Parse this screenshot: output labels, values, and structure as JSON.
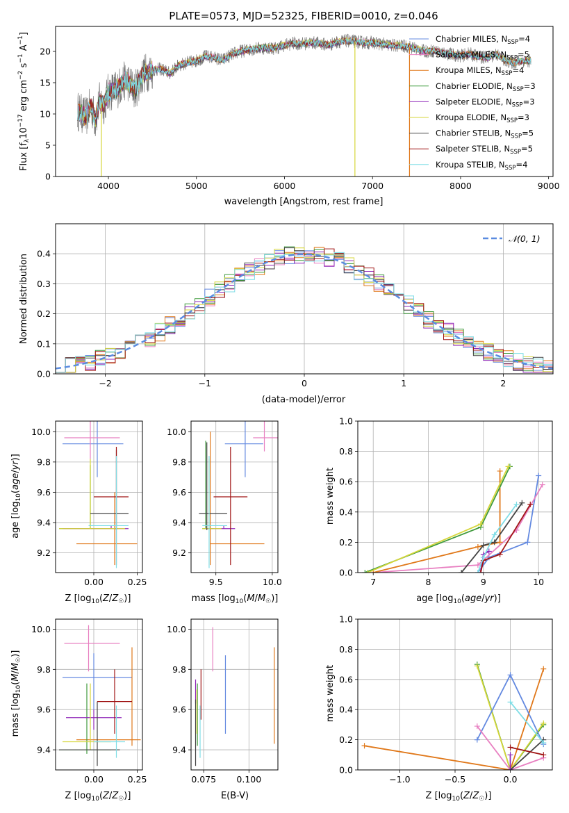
{
  "title": "PLATE=0573, MJD=52325, FIBERID=0010, z=0.046",
  "colors": {
    "chabrier_miles": "#6389e0",
    "salpeter_miles": "#e87fc1",
    "kroupa_miles": "#e0781a",
    "chabrier_elodie": "#3f9a3c",
    "salpeter_elodie": "#8f27b8",
    "kroupa_elodie": "#d6d63a",
    "chabrier_stelib": "#444444",
    "salpeter_stelib": "#a01515",
    "kroupa_stelib": "#7fdde6"
  },
  "chart_data": [
    {
      "id": "spectrum",
      "type": "line",
      "xlabel": "wavelength [Angstrom, rest frame]",
      "ylabel": "Flux [fλ10⁻¹⁷ erg cm⁻² s⁻¹ A⁻¹]",
      "xlim": [
        3400,
        9050
      ],
      "ylim": [
        0,
        24
      ],
      "xticks": [
        "4000",
        "5000",
        "6000",
        "7000",
        "8000",
        "9000"
      ],
      "yticks": [
        "0",
        "5",
        "10",
        "15",
        "20"
      ],
      "legend_position": "right",
      "continuum": {
        "x": [
          3650,
          3700,
          3750,
          3800,
          3850,
          3900,
          3950,
          4000,
          4100,
          4200,
          4300,
          4400,
          4500,
          4600,
          4700,
          4800,
          4900,
          5000,
          5100,
          5200,
          5300,
          5400,
          5500,
          5600,
          5700,
          5800,
          5900,
          6000,
          6100,
          6200,
          6300,
          6400,
          6500,
          6600,
          6700,
          6800,
          6900,
          7000,
          7100,
          7200,
          7300,
          7400,
          7500,
          7600,
          7700,
          7800,
          7900,
          8000,
          8100,
          8200,
          8300,
          8400,
          8500,
          8600,
          8700,
          8800
        ],
        "y": [
          10.5,
          10.0,
          9.5,
          11.5,
          9.0,
          12.0,
          11.5,
          13.5,
          14.0,
          15.5,
          13.8,
          16.5,
          17.0,
          17.2,
          16.5,
          17.8,
          18.2,
          18.5,
          19.2,
          19.0,
          18.6,
          19.5,
          20.0,
          20.3,
          20.5,
          20.6,
          20.5,
          21.0,
          21.3,
          21.2,
          21.4,
          21.3,
          21.0,
          21.5,
          21.7,
          21.6,
          21.4,
          21.4,
          21.2,
          21.0,
          20.9,
          20.8,
          20.4,
          20.0,
          20.1,
          19.8,
          19.5,
          19.3,
          19.6,
          19.2,
          19.0,
          19.6,
          18.6,
          18.2,
          18.5,
          18.5
        ]
      },
      "series": [
        {
          "name": "Chabrier MILES, N_SSP=4",
          "label": "Chabrier MILES, N",
          "sub": "SSP",
          "suffix": "=4",
          "color_key": "chabrier_miles"
        },
        {
          "name": "Salpeter MILES, N_SSP=5",
          "label": "Salpeter MILES, N",
          "sub": "SSP",
          "suffix": "=5",
          "color_key": "salpeter_miles"
        },
        {
          "name": "Kroupa MILES, N_SSP=4",
          "label": "Kroupa MILES, N",
          "sub": "SSP",
          "suffix": "=4",
          "color_key": "kroupa_miles"
        },
        {
          "name": "Chabrier ELODIE, N_SSP=3",
          "label": "Chabrier ELODIE, N",
          "sub": "SSP",
          "suffix": "=3",
          "color_key": "chabrier_elodie"
        },
        {
          "name": "Salpeter ELODIE, N_SSP=3",
          "label": "Salpeter ELODIE, N",
          "sub": "SSP",
          "suffix": "=3",
          "color_key": "salpeter_elodie"
        },
        {
          "name": "Kroupa ELODIE, N_SSP=3",
          "label": "Kroupa ELODIE, N",
          "sub": "SSP",
          "suffix": "=3",
          "color_key": "kroupa_elodie"
        },
        {
          "name": "Chabrier STELIB, N_SSP=5",
          "label": "Chabrier STELIB, N",
          "sub": "SSP",
          "suffix": "=5",
          "color_key": "chabrier_stelib"
        },
        {
          "name": "Salpeter STELIB, N_SSP=5",
          "label": "Salpeter STELIB, N",
          "sub": "SSP",
          "suffix": "=5",
          "color_key": "salpeter_stelib"
        },
        {
          "name": "Kroupa STELIB, N_SSP=4",
          "label": "Kroupa STELIB, N",
          "sub": "SSP",
          "suffix": "=4",
          "color_key": "kroupa_stelib"
        }
      ]
    },
    {
      "id": "residuals",
      "type": "area",
      "xlabel": "(data-model)/error",
      "ylabel": "Normed distribution",
      "xlim": [
        -2.5,
        2.5
      ],
      "ylim": [
        0,
        0.5
      ],
      "xticks": [
        "−2",
        "−1",
        "0",
        "1",
        "2"
      ],
      "yticks": [
        "0.0",
        "0.1",
        "0.2",
        "0.3",
        "0.4"
      ],
      "grid": true,
      "legend_position": "top-right",
      "legend_label": "𝒩(0, 1)",
      "bin_width": 0.1,
      "bin_start": -2.5,
      "bins": 50
    },
    {
      "id": "age_vs_Z",
      "type": "scatter",
      "xlabel": "Z [log10(Z/Z⊙)]",
      "ylabel": "age [log10(age/yr)]",
      "xlim": [
        -0.22,
        0.28
      ],
      "ylim": [
        9.07,
        10.07
      ],
      "xticks": [
        "0.00",
        "0.25"
      ],
      "yticks": [
        "9.2",
        "9.4",
        "9.6",
        "9.8",
        "10.0"
      ],
      "grid": true,
      "points": [
        {
          "k": "chabrier_miles",
          "x": 0.02,
          "y": 9.92,
          "ex": [
            -0.18,
            0.17
          ],
          "ey": [
            9.7,
            10.08
          ]
        },
        {
          "k": "salpeter_miles",
          "x": -0.02,
          "y": 9.96,
          "ex": [
            -0.17,
            0.15
          ],
          "ey": [
            9.82,
            10.1
          ]
        },
        {
          "k": "kroupa_miles",
          "x": 0.12,
          "y": 9.26,
          "ex": [
            -0.1,
            0.25
          ],
          "ey": [
            9.12,
            9.6
          ]
        },
        {
          "k": "chabrier_elodie",
          "x": -0.02,
          "y": 9.36,
          "ex": [
            -0.2,
            0.1
          ],
          "ey": [
            9.36,
            9.78
          ]
        },
        {
          "k": "salpeter_elodie",
          "x": 0.1,
          "y": 9.36,
          "ex": [
            -0.18,
            0.2
          ],
          "ey": [
            9.36,
            9.38
          ]
        },
        {
          "k": "kroupa_elodie",
          "x": -0.02,
          "y": 9.36,
          "ex": [
            -0.2,
            0.18
          ],
          "ey": [
            9.36,
            9.82
          ]
        },
        {
          "k": "chabrier_stelib",
          "x": 0.13,
          "y": 9.46,
          "ex": [
            -0.02,
            0.2
          ],
          "ey": [
            9.35,
            9.88
          ]
        },
        {
          "k": "salpeter_stelib",
          "x": 0.13,
          "y": 9.57,
          "ex": [
            0.0,
            0.2
          ],
          "ey": [
            9.12,
            9.9
          ]
        },
        {
          "k": "kroupa_stelib",
          "x": 0.13,
          "y": 9.38,
          "ex": [
            -0.03,
            0.2
          ],
          "ey": [
            9.1,
            9.84
          ]
        }
      ]
    },
    {
      "id": "age_vs_mass",
      "type": "scatter",
      "xlabel": "mass [log10(M/M⊙)]",
      "ylabel": "",
      "xlim": [
        9.28,
        10.05
      ],
      "ylim": [
        9.07,
        10.07
      ],
      "xticks": [
        "9.5",
        "10.0"
      ],
      "yticks": [
        "9.2",
        "9.4",
        "9.6",
        "9.8",
        "10.0"
      ],
      "grid": true,
      "points": [
        {
          "k": "chabrier_miles",
          "x": 9.76,
          "y": 9.92,
          "ex": [
            9.58,
            9.92
          ],
          "ey": [
            9.7,
            10.08
          ]
        },
        {
          "k": "salpeter_miles",
          "x": 9.93,
          "y": 9.96,
          "ex": [
            9.83,
            10.05
          ],
          "ey": [
            9.87,
            10.1
          ]
        },
        {
          "k": "kroupa_miles",
          "x": 9.45,
          "y": 9.26,
          "ex": [
            9.45,
            9.93
          ],
          "ey": [
            9.12,
            10.0
          ]
        },
        {
          "k": "chabrier_elodie",
          "x": 9.41,
          "y": 9.36,
          "ex": [
            9.38,
            9.48
          ],
          "ey": [
            9.36,
            9.94
          ]
        },
        {
          "k": "salpeter_elodie",
          "x": 9.57,
          "y": 9.36,
          "ex": [
            9.4,
            9.67
          ],
          "ey": [
            9.36,
            9.38
          ]
        },
        {
          "k": "kroupa_elodie",
          "x": 9.44,
          "y": 9.36,
          "ex": [
            9.38,
            9.55
          ],
          "ey": [
            9.36,
            9.82
          ]
        },
        {
          "k": "chabrier_stelib",
          "x": 9.42,
          "y": 9.46,
          "ex": [
            9.35,
            9.6
          ],
          "ey": [
            9.35,
            9.93
          ]
        },
        {
          "k": "salpeter_stelib",
          "x": 9.63,
          "y": 9.57,
          "ex": [
            9.48,
            9.78
          ],
          "ey": [
            9.12,
            9.9
          ]
        },
        {
          "k": "kroupa_stelib",
          "x": 9.44,
          "y": 9.38,
          "ex": [
            9.38,
            9.6
          ],
          "ey": [
            9.1,
            9.84
          ]
        }
      ]
    },
    {
      "id": "weight_vs_age",
      "type": "line",
      "xlabel": "age [log10(age/yr)]",
      "ylabel": "mass weight",
      "xlim": [
        6.72,
        10.25
      ],
      "ylim": [
        0,
        1
      ],
      "xticks": [
        "7",
        "8",
        "9",
        "10"
      ],
      "yticks": [
        "0.0",
        "0.2",
        "0.4",
        "0.6",
        "0.8",
        "1.0"
      ],
      "grid": true,
      "series": [
        {
          "k": "chabrier_miles",
          "x": [
            8.9,
            9.1,
            9.8,
            10.0
          ],
          "y": [
            0.0,
            0.1,
            0.2,
            0.64
          ]
        },
        {
          "k": "salpeter_miles",
          "x": [
            7.0,
            8.9,
            9.6,
            10.07
          ],
          "y": [
            0.0,
            0.05,
            0.28,
            0.58
          ]
        },
        {
          "k": "kroupa_miles",
          "x": [
            7.0,
            8.9,
            9.3,
            9.3
          ],
          "y": [
            0.0,
            0.17,
            0.2,
            0.67
          ]
        },
        {
          "k": "chabrier_elodie",
          "x": [
            6.85,
            8.95,
            9.48
          ],
          "y": [
            0.0,
            0.3,
            0.7
          ]
        },
        {
          "k": "salpeter_elodie",
          "x": [
            8.95,
            9.0,
            9.1
          ],
          "y": [
            0.0,
            0.12,
            0.14
          ]
        },
        {
          "k": "kroupa_elodie",
          "x": [
            6.9,
            8.95,
            9.45
          ],
          "y": [
            0.0,
            0.32,
            0.7
          ]
        },
        {
          "k": "chabrier_stelib",
          "x": [
            8.6,
            9.0,
            9.2,
            9.7
          ],
          "y": [
            0.0,
            0.18,
            0.2,
            0.46
          ]
        },
        {
          "k": "salpeter_stelib",
          "x": [
            8.95,
            9.0,
            9.3,
            9.85
          ],
          "y": [
            0.0,
            0.08,
            0.12,
            0.45
          ]
        },
        {
          "k": "kroupa_stelib",
          "x": [
            8.9,
            9.0,
            9.2,
            9.6
          ],
          "y": [
            0.0,
            0.1,
            0.25,
            0.45
          ]
        }
      ]
    },
    {
      "id": "mass_vs_Z",
      "type": "scatter",
      "xlabel": "Z [log10(Z/Z⊙)]",
      "ylabel": "mass [log10(M/M⊙)]",
      "xlim": [
        -0.22,
        0.28
      ],
      "ylim": [
        9.3,
        10.05
      ],
      "xticks": [
        "0.00",
        "0.25"
      ],
      "yticks": [
        "9.4",
        "9.6",
        "9.8",
        "10.0"
      ],
      "grid": true,
      "points": [
        {
          "k": "chabrier_miles",
          "x": 0.0,
          "y": 9.76,
          "ex": [
            -0.18,
            0.22
          ],
          "ey": [
            9.6,
            9.88
          ]
        },
        {
          "k": "salpeter_miles",
          "x": -0.03,
          "y": 9.93,
          "ex": [
            -0.17,
            0.15
          ],
          "ey": [
            9.79,
            10.02
          ]
        },
        {
          "k": "kroupa_miles",
          "x": 0.22,
          "y": 9.45,
          "ex": [
            -0.1,
            0.27
          ],
          "ey": [
            9.42,
            9.91
          ]
        },
        {
          "k": "chabrier_elodie",
          "x": -0.04,
          "y": 9.4,
          "ex": [
            -0.2,
            0.1
          ],
          "ey": [
            9.38,
            9.73
          ]
        },
        {
          "k": "salpeter_elodie",
          "x": 0.0,
          "y": 9.56,
          "ex": [
            -0.16,
            0.16
          ],
          "ey": [
            9.5,
            9.6
          ]
        },
        {
          "k": "kroupa_elodie",
          "x": -0.02,
          "y": 9.44,
          "ex": [
            -0.18,
            0.1
          ],
          "ey": [
            9.4,
            9.73
          ]
        },
        {
          "k": "chabrier_stelib",
          "x": 0.02,
          "y": 9.4,
          "ex": [
            -0.2,
            0.15
          ],
          "ey": [
            9.32,
            9.64
          ]
        },
        {
          "k": "salpeter_stelib",
          "x": 0.12,
          "y": 9.64,
          "ex": [
            0.02,
            0.22
          ],
          "ey": [
            9.48,
            9.8
          ]
        },
        {
          "k": "kroupa_stelib",
          "x": 0.13,
          "y": 9.44,
          "ex": [
            0.0,
            0.18
          ],
          "ey": [
            9.36,
            9.62
          ]
        }
      ]
    },
    {
      "id": "mass_vs_ebv",
      "type": "scatter",
      "xlabel": "E(B-V)",
      "ylabel": "",
      "xlim": [
        0.068,
        0.116
      ],
      "ylim": [
        9.3,
        10.05
      ],
      "xticks": [
        "0.075",
        "0.100"
      ],
      "yticks": [
        "9.4",
        "9.6",
        "9.8",
        "10.0"
      ],
      "grid": true,
      "points": [
        {
          "k": "chabrier_miles",
          "x": 0.087,
          "ey": [
            9.48,
            9.87
          ]
        },
        {
          "k": "salpeter_miles",
          "x": 0.08,
          "ey": [
            9.79,
            10.01
          ]
        },
        {
          "k": "kroupa_miles",
          "x": 0.114,
          "ey": [
            9.43,
            9.91
          ]
        },
        {
          "k": "chabrier_elodie",
          "x": 0.0715,
          "ey": [
            9.42,
            9.73
          ]
        },
        {
          "k": "salpeter_elodie",
          "x": 0.0705,
          "ey": [
            9.63,
            9.75
          ]
        },
        {
          "k": "kroupa_elodie",
          "x": 0.0712,
          "ey": [
            9.48,
            9.7
          ]
        },
        {
          "k": "chabrier_stelib",
          "x": 0.0705,
          "ey": [
            9.32,
            9.65
          ]
        },
        {
          "k": "salpeter_stelib",
          "x": 0.0735,
          "ey": [
            9.55,
            9.8
          ]
        },
        {
          "k": "kroupa_stelib",
          "x": 0.073,
          "ey": [
            9.36,
            9.62
          ]
        }
      ]
    },
    {
      "id": "weight_vs_Z",
      "type": "line",
      "xlabel": "Z [log10(Z/Z⊙)]",
      "ylabel": "mass weight",
      "xlim": [
        -1.38,
        0.38
      ],
      "ylim": [
        0,
        1
      ],
      "xticks": [
        "−1.0",
        "−0.5",
        "0.0"
      ],
      "yticks": [
        "0.0",
        "0.2",
        "0.4",
        "0.6",
        "0.8",
        "1.0"
      ],
      "grid": true,
      "series": [
        {
          "k": "kroupa_miles",
          "x": [
            -1.32,
            0.0,
            0.3
          ],
          "y": [
            0.16,
            0.0,
            0.67
          ]
        },
        {
          "k": "chabrier_elodie",
          "x": [
            -0.3,
            0.0,
            0.3
          ],
          "y": [
            0.7,
            0.0,
            0.3
          ]
        },
        {
          "k": "kroupa_elodie",
          "x": [
            -0.3,
            0.0,
            0.3
          ],
          "y": [
            0.69,
            0.0,
            0.31
          ]
        },
        {
          "k": "chabrier_miles",
          "x": [
            -0.3,
            0.0,
            0.3
          ],
          "y": [
            0.2,
            0.63,
            0.17
          ]
        },
        {
          "k": "salpeter_miles",
          "x": [
            -0.3,
            0.0,
            0.3
          ],
          "y": [
            0.29,
            0.0,
            0.08
          ]
        },
        {
          "k": "chabrier_stelib",
          "x": [
            0.0,
            0.3
          ],
          "y": [
            0.0,
            0.2
          ]
        },
        {
          "k": "salpeter_stelib",
          "x": [
            0.0,
            0.3
          ],
          "y": [
            0.15,
            0.1
          ]
        },
        {
          "k": "kroupa_stelib",
          "x": [
            0.0,
            0.3
          ],
          "y": [
            0.45,
            0.18
          ]
        },
        {
          "k": "salpeter_elodie",
          "x": [
            0.0,
            0.0
          ],
          "y": [
            0.0,
            0.1
          ]
        }
      ]
    }
  ]
}
